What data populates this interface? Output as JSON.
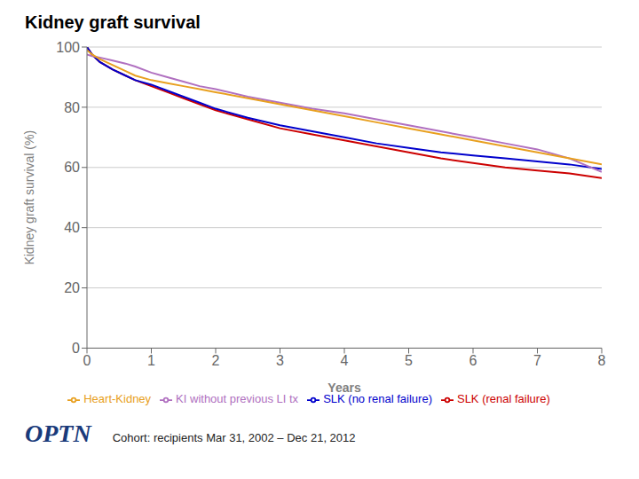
{
  "chart_data": {
    "type": "line",
    "title": "Kidney graft survival",
    "subtitle": "Cohort: recipients Mar 31, 2002 – Dec 21, 2012",
    "annotations": [
      "OPTN"
    ],
    "xlabel": "Years",
    "ylabel": "Kidney graft survival (%)",
    "xlim": [
      0,
      8
    ],
    "ylim": [
      0,
      100
    ],
    "xticks": [
      0,
      1,
      2,
      3,
      4,
      5,
      6,
      7,
      8
    ],
    "yticks": [
      0,
      20,
      40,
      60,
      80,
      100
    ],
    "grid": "y",
    "legend": "bottom",
    "x": [
      0,
      0.08,
      0.2,
      0.4,
      0.6,
      0.75,
      1.0,
      1.25,
      1.5,
      1.75,
      2.0,
      2.5,
      3.0,
      3.5,
      4.0,
      4.5,
      5.0,
      5.5,
      6.0,
      6.5,
      7.0,
      7.5,
      8.0
    ],
    "series": [
      {
        "name": "SLK (renal failure)",
        "color": "#cc0000",
        "values": [
          100,
          97.5,
          95,
          92.5,
          90.5,
          89.0,
          87.0,
          85.0,
          83.0,
          81.0,
          79.0,
          76.0,
          73.0,
          71.0,
          69.0,
          67.0,
          65.0,
          63.0,
          61.5,
          60.0,
          59.0,
          58.0,
          56.5
        ]
      },
      {
        "name": "SLK (no renal failure)",
        "color": "#0000cc",
        "values": [
          100,
          97.5,
          95,
          92.5,
          90.5,
          89.0,
          87.5,
          85.5,
          83.5,
          81.5,
          79.5,
          76.5,
          74.0,
          72.0,
          70.0,
          68.0,
          66.5,
          65.0,
          64.0,
          63.0,
          62.0,
          61.0,
          59.5
        ]
      },
      {
        "name": "KI without previous LI tx",
        "color": "#b070c0",
        "values": [
          97.5,
          97.0,
          96.5,
          95.5,
          94.5,
          93.5,
          91.5,
          90.0,
          88.5,
          87.0,
          86.0,
          83.5,
          81.5,
          79.5,
          78.0,
          76.0,
          74.0,
          72.0,
          70.0,
          68.0,
          66.0,
          63.0,
          58.5
        ]
      },
      {
        "name": "Heart-Kidney",
        "color": "#e8a020",
        "values": [
          99.0,
          97.5,
          96.0,
          94.0,
          92.0,
          90.5,
          89.0,
          88.0,
          87.0,
          86.0,
          85.0,
          83.0,
          81.0,
          79.0,
          77.0,
          75.0,
          73.0,
          71.0,
          69.0,
          67.0,
          65.0,
          63.0,
          61.0
        ]
      }
    ]
  }
}
